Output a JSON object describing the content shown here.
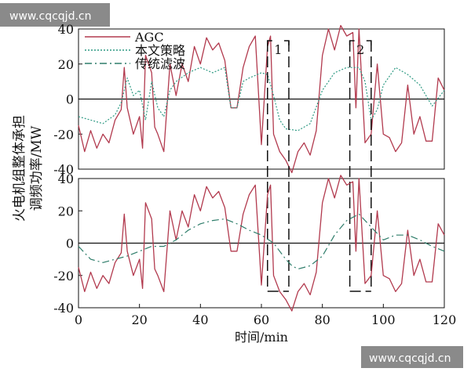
{
  "watermark": {
    "top_text": "www.cqcqjd.cn",
    "bottom_text": "www.cqcqjd.cn"
  },
  "colors": {
    "agc": "#b23a4e",
    "strategy": "#2e9a83",
    "traditional": "#2e7d6a",
    "axis": "#111111",
    "dashbox": "#111111"
  },
  "chart_data": [
    {
      "type": "line",
      "panel": "top",
      "xlim": [
        0,
        120
      ],
      "ylim": [
        -40,
        40
      ],
      "yticks": [
        -40,
        -20,
        0,
        20,
        40
      ],
      "xticks": [],
      "legend": {
        "placement": "top-left",
        "entries": [
          "AGC",
          "本文策略",
          "传统滤波"
        ]
      },
      "annotations": [
        {
          "label": "1",
          "x_range": [
            62,
            69
          ]
        },
        {
          "label": "2",
          "x_range": [
            89,
            96
          ]
        }
      ],
      "series": [
        {
          "name": "AGC",
          "style": "solid",
          "x": [
            0,
            2,
            4,
            6,
            8,
            10,
            12,
            14,
            15,
            16,
            18,
            20,
            21,
            22,
            24,
            25,
            26,
            28,
            30,
            32,
            34,
            36,
            38,
            40,
            42,
            44,
            46,
            48,
            50,
            52,
            54,
            56,
            58,
            60,
            62,
            63,
            64,
            66,
            68,
            70,
            72,
            74,
            76,
            78,
            80,
            82,
            84,
            86,
            88,
            90,
            91,
            92,
            94,
            96,
            98,
            100,
            102,
            104,
            106,
            108,
            110,
            112,
            114,
            116,
            118,
            120
          ],
          "y": [
            -15,
            -30,
            -18,
            -28,
            -20,
            -25,
            -12,
            -6,
            18,
            -5,
            -20,
            -10,
            -28,
            25,
            15,
            -16,
            -20,
            -30,
            20,
            2,
            20,
            10,
            30,
            20,
            35,
            28,
            32,
            22,
            -5,
            -5,
            18,
            30,
            36,
            -26,
            30,
            36,
            -20,
            -30,
            -35,
            -42,
            -30,
            -25,
            -32,
            -18,
            25,
            40,
            28,
            42,
            36,
            38,
            -5,
            40,
            -25,
            -20,
            20,
            -20,
            -22,
            -30,
            -25,
            8,
            -20,
            -10,
            -24,
            -24,
            12,
            5
          ]
        },
        {
          "name": "本文策略",
          "style": "dotted",
          "x": [
            0,
            4,
            8,
            12,
            14,
            16,
            18,
            20,
            22,
            24,
            26,
            28,
            30,
            32,
            36,
            40,
            44,
            48,
            50,
            52,
            54,
            56,
            60,
            62,
            64,
            66,
            68,
            72,
            76,
            80,
            84,
            88,
            92,
            94,
            96,
            98,
            100,
            104,
            108,
            112,
            116,
            120
          ],
          "y": [
            -10,
            -12,
            -14,
            -9,
            -2,
            12,
            2,
            5,
            -12,
            10,
            -5,
            -10,
            5,
            10,
            15,
            18,
            15,
            18,
            -5,
            -5,
            10,
            12,
            15,
            14,
            2,
            -12,
            -17,
            -18,
            -14,
            5,
            15,
            18,
            18,
            10,
            -12,
            -6,
            8,
            18,
            14,
            8,
            -4,
            5
          ]
        }
      ]
    },
    {
      "type": "line",
      "panel": "bottom",
      "xlim": [
        0,
        120
      ],
      "ylim": [
        -40,
        40
      ],
      "yticks": [
        -40,
        -20,
        0,
        20,
        40
      ],
      "xticks": [
        0,
        20,
        40,
        60,
        80,
        100,
        120
      ],
      "xlabel": "时间/min",
      "ylabel": "火电机组整体承担\n调频功率/MW",
      "annotations": [
        {
          "label": "",
          "x_range": [
            62,
            69
          ]
        },
        {
          "label": "",
          "x_range": [
            89,
            96
          ]
        }
      ],
      "series": [
        {
          "name": "AGC",
          "style": "solid",
          "x": [
            0,
            2,
            4,
            6,
            8,
            10,
            12,
            14,
            15,
            16,
            18,
            20,
            21,
            22,
            24,
            25,
            26,
            28,
            30,
            32,
            34,
            36,
            38,
            40,
            42,
            44,
            46,
            48,
            50,
            52,
            54,
            56,
            58,
            60,
            62,
            63,
            64,
            66,
            68,
            70,
            72,
            74,
            76,
            78,
            80,
            82,
            84,
            86,
            88,
            90,
            91,
            92,
            94,
            96,
            98,
            100,
            102,
            104,
            106,
            108,
            110,
            112,
            114,
            116,
            118,
            120
          ],
          "y": [
            -15,
            -30,
            -18,
            -28,
            -20,
            -25,
            -12,
            -6,
            18,
            -5,
            -20,
            -10,
            -28,
            25,
            15,
            -16,
            -20,
            -30,
            20,
            2,
            20,
            10,
            30,
            20,
            35,
            28,
            32,
            22,
            -5,
            -5,
            18,
            30,
            36,
            -26,
            30,
            36,
            -20,
            -30,
            -35,
            -42,
            -30,
            -25,
            -32,
            -18,
            25,
            40,
            28,
            42,
            36,
            38,
            -5,
            40,
            -25,
            -20,
            20,
            -20,
            -22,
            -30,
            -25,
            8,
            -20,
            -10,
            -24,
            -24,
            12,
            5
          ]
        },
        {
          "name": "传统滤波",
          "style": "dashdot",
          "x": [
            0,
            4,
            8,
            12,
            16,
            20,
            24,
            28,
            32,
            36,
            40,
            44,
            48,
            52,
            56,
            60,
            64,
            66,
            68,
            70,
            72,
            76,
            80,
            84,
            88,
            92,
            96,
            100,
            104,
            108,
            112,
            116,
            120
          ],
          "y": [
            -2,
            -10,
            -12,
            -10,
            -8,
            -5,
            -2,
            -2,
            2,
            8,
            12,
            14,
            15,
            12,
            8,
            5,
            0,
            -5,
            -10,
            -14,
            -16,
            -14,
            -8,
            5,
            14,
            18,
            10,
            2,
            5,
            5,
            2,
            -2,
            -5
          ]
        }
      ]
    }
  ]
}
